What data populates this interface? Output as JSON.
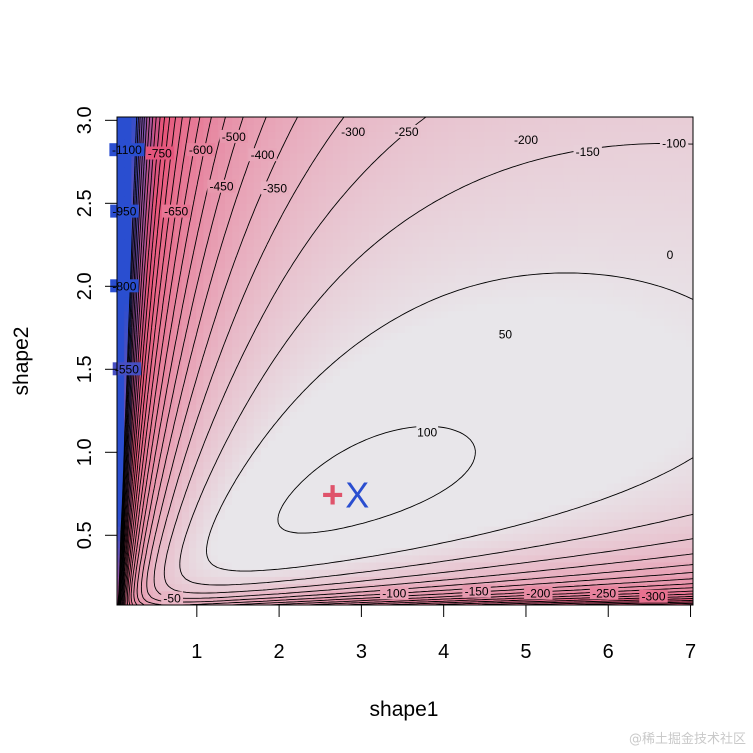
{
  "chart_data": {
    "type": "heatmap",
    "title": "",
    "xlabel": "shape1",
    "ylabel": "shape2",
    "xlim": [
      0.03,
      7.03
    ],
    "ylim": [
      0.08,
      3.02
    ],
    "x_ticks": [
      "1",
      "2",
      "3",
      "4",
      "5",
      "6",
      "7"
    ],
    "x_tick_values": [
      1,
      2,
      3,
      4,
      5,
      6,
      7
    ],
    "y_ticks": [
      "0.5",
      "1.0",
      "1.5",
      "2.0",
      "2.5",
      "3.0"
    ],
    "y_tick_values": [
      0.5,
      1.0,
      1.5,
      2.0,
      2.5,
      3.0
    ],
    "surface": {
      "description_hidden": true,
      "max_point": [
        2.95,
        0.77
      ],
      "max_value": 110
    },
    "contour_levels": [
      100,
      50,
      0,
      -50,
      -100,
      -150,
      -200,
      -250,
      -300,
      -350,
      -400,
      -450,
      -500,
      -550,
      -600,
      -650,
      -700,
      -750,
      -800,
      -850,
      -900,
      -950,
      -1000,
      -1050,
      -1100,
      -1150
    ],
    "contour_labels": [
      {
        "text": "100",
        "x": 3.8,
        "y": 1.12
      },
      {
        "text": "50",
        "x": 4.75,
        "y": 1.71
      },
      {
        "text": "0",
        "x": 6.75,
        "y": 2.19
      },
      {
        "text": "-100",
        "x": 6.8,
        "y": 2.86
      },
      {
        "text": "-150",
        "x": 5.75,
        "y": 2.81
      },
      {
        "text": "-200",
        "x": 5.0,
        "y": 2.88
      },
      {
        "text": "-250",
        "x": 3.55,
        "y": 2.93
      },
      {
        "text": "-300",
        "x": 2.9,
        "y": 2.93
      },
      {
        "text": "-350",
        "x": 1.95,
        "y": 2.59
      },
      {
        "text": "-400",
        "x": 1.8,
        "y": 2.79
      },
      {
        "text": "-450",
        "x": 1.3,
        "y": 2.6
      },
      {
        "text": "-500",
        "x": 1.45,
        "y": 2.9
      },
      {
        "text": "-600",
        "x": 1.05,
        "y": 2.82
      },
      {
        "text": "-650",
        "x": 0.75,
        "y": 2.45
      },
      {
        "text": "-750",
        "x": 0.55,
        "y": 2.8
      },
      {
        "text": "-950",
        "x": 0.12,
        "y": 2.45
      },
      {
        "text": "-1100",
        "x": 0.15,
        "y": 2.82
      },
      {
        "text": "-800",
        "x": 0.12,
        "y": 2.0
      },
      {
        "text": "-550",
        "x": 0.15,
        "y": 1.5
      },
      {
        "text": "-50",
        "x": 0.7,
        "y": 0.12
      },
      {
        "text": "-100",
        "x": 3.4,
        "y": 0.15
      },
      {
        "text": "-150",
        "x": 4.4,
        "y": 0.16
      },
      {
        "text": "-200",
        "x": 5.15,
        "y": 0.15
      },
      {
        "text": "-250",
        "x": 5.95,
        "y": 0.15
      },
      {
        "text": "-300",
        "x": 6.55,
        "y": 0.13
      }
    ],
    "markers": [
      {
        "label": "+",
        "x": 2.65,
        "y": 0.74,
        "color": "#df536b"
      },
      {
        "label": "X",
        "x": 2.95,
        "y": 0.74,
        "color": "#2a4ed0"
      }
    ],
    "colors": {
      "high": "#e8e6ea",
      "mid": "#e7557a",
      "low": "#2a4ed0"
    },
    "grid": false,
    "legend": "none"
  },
  "watermark": "@稀土掘金技术社区"
}
